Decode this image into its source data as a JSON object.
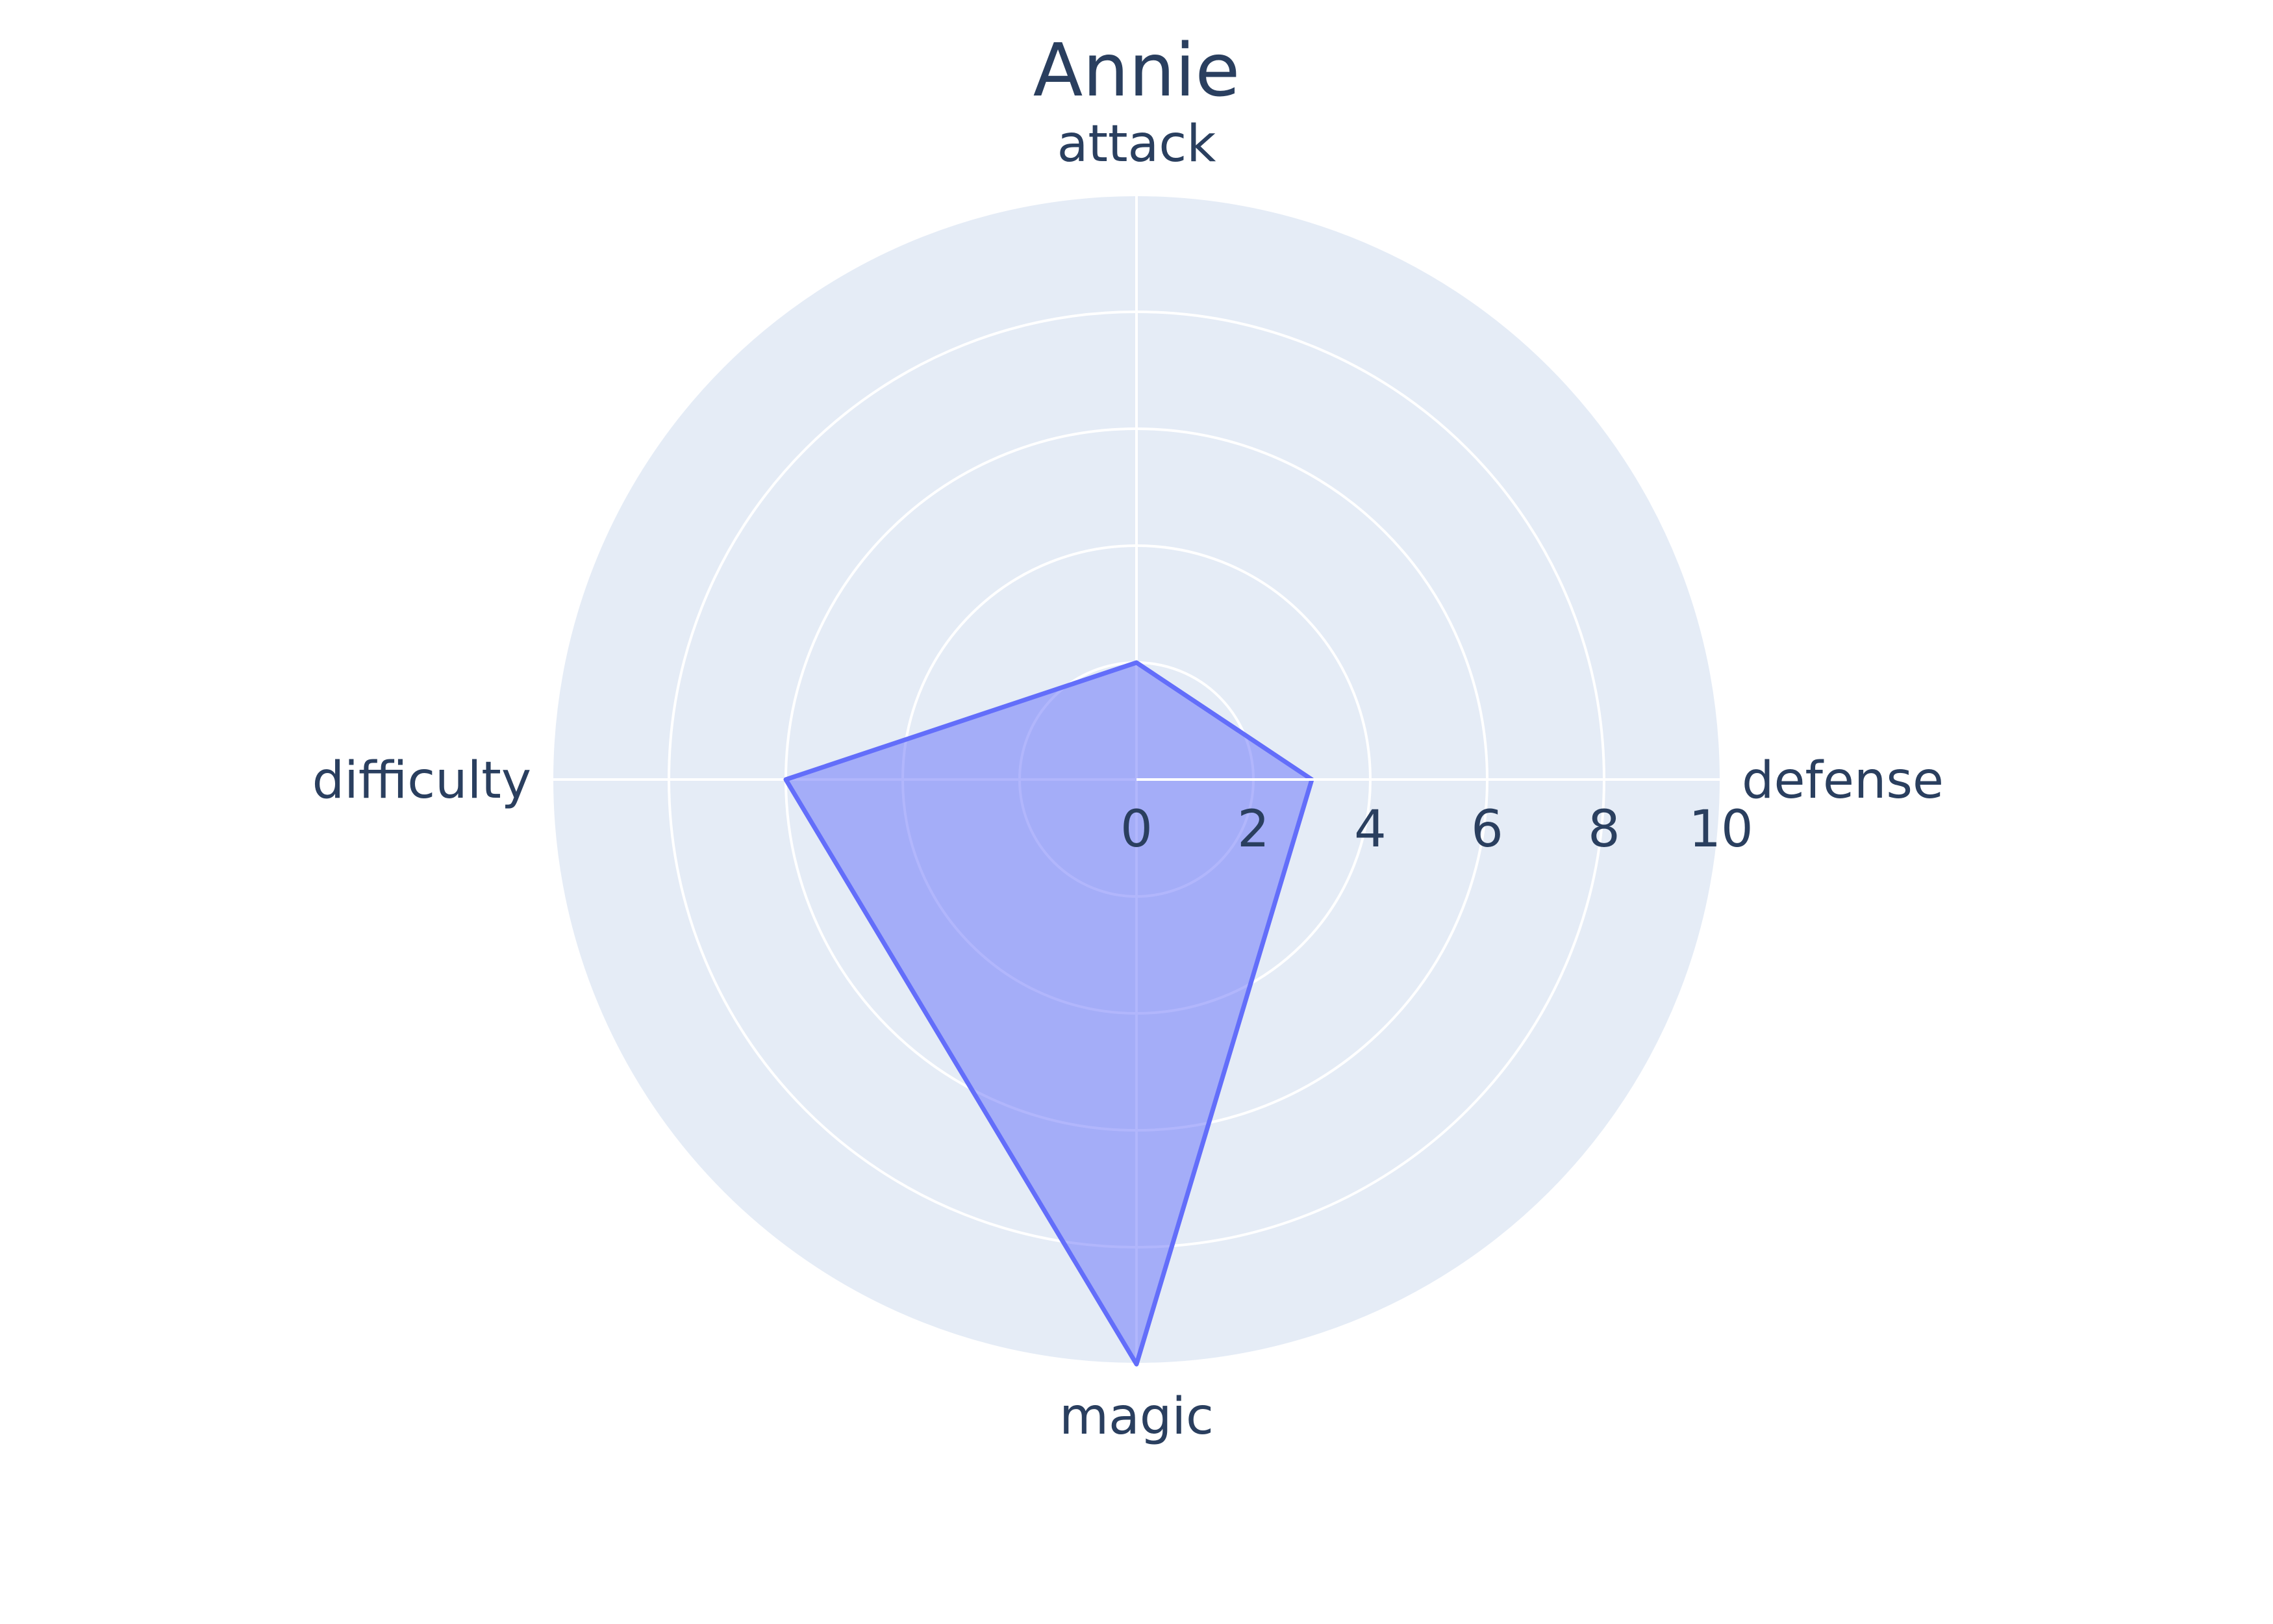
{
  "chart_data": {
    "type": "radar",
    "title": "Annie",
    "categories": [
      "attack",
      "defense",
      "magic",
      "difficulty"
    ],
    "series": [
      {
        "values": [
          2,
          3,
          10,
          6
        ],
        "color": "#636efa",
        "fill": "toself"
      }
    ],
    "radial_range": [
      0,
      10
    ],
    "radial_ticks": [
      "0",
      "2",
      "4",
      "6",
      "8",
      "10"
    ],
    "grid": true,
    "background_color": "#e5ecf6",
    "grid_color": "#ffffff",
    "text_color": "#2a3f5f"
  }
}
